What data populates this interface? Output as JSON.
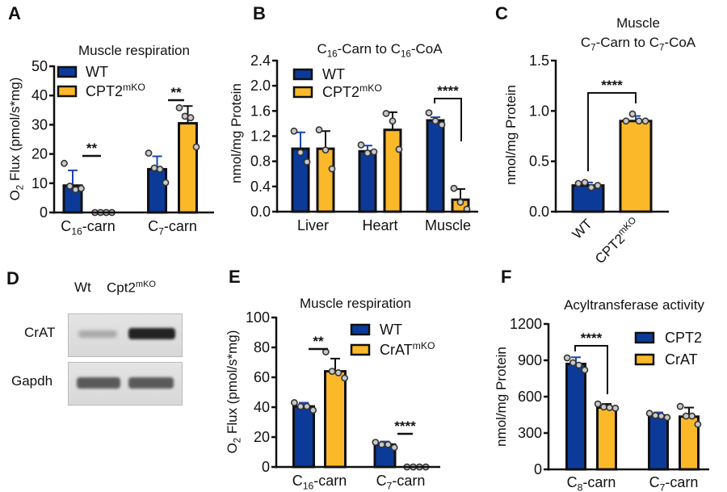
{
  "colors": {
    "wt_blue": "#0b3a99",
    "ko_yellow": "#fbb829",
    "point": "#c9c9c9",
    "outline": "#111111"
  },
  "panels": {
    "letters": [
      "A",
      "B",
      "C",
      "D",
      "E",
      "F"
    ]
  },
  "western_blot": {
    "lanes": [
      "Wt",
      "Cpt2"
    ],
    "lane2_sup": "mKO",
    "rows": [
      "CrAT",
      "Gapdh"
    ]
  },
  "chart_data": [
    {
      "id": "A",
      "type": "bar",
      "title": [
        [
          "Muscle respiration"
        ]
      ],
      "ylabel": [
        [
          "O"
        ],
        [
          "2",
          "sub"
        ],
        [
          " Flux (pmol/s*mg)"
        ]
      ],
      "ylim": [
        0,
        50
      ],
      "yticks": [
        0,
        10,
        20,
        30,
        40,
        50
      ],
      "ytick_labels": [
        "0",
        "10",
        "20",
        "30",
        "40",
        "50"
      ],
      "categories": [
        [
          [
            "C"
          ],
          [
            "16",
            "sub"
          ],
          [
            "-carn"
          ]
        ],
        [
          [
            "C"
          ],
          [
            "7",
            "sub"
          ],
          [
            "-carn"
          ]
        ]
      ],
      "legend": "top-left",
      "series": [
        {
          "name": [
            [
              "WT"
            ]
          ],
          "color": "#0b3a99",
          "values": [
            9.2,
            14.8
          ],
          "error_upper": [
            14.4,
            19.2
          ],
          "points": [
            [
              16.8,
              9,
              7.8,
              8.2
            ],
            [
              20.3,
              15.2,
              14.8,
              10.2
            ]
          ]
        },
        {
          "name": [
            [
              "CPT2"
            ],
            [
              "mKO",
              "sup"
            ]
          ],
          "color": "#fbb829",
          "values": [
            0.1,
            30.5
          ],
          "error_upper": [
            0.2,
            36.4
          ],
          "points": [
            [
              0,
              0,
              0,
              0
            ],
            [
              35.8,
              32.9,
              32.4,
              22.4
            ]
          ]
        }
      ],
      "significance": [
        {
          "label": "**",
          "category": 0,
          "style": "line"
        },
        {
          "label": "**",
          "category": 1,
          "style": "line"
        }
      ]
    },
    {
      "id": "B",
      "type": "bar",
      "title": [
        [
          "C"
        ],
        [
          "16",
          "sub"
        ],
        [
          "-Carn to C"
        ],
        [
          "16",
          "sub"
        ],
        [
          "-CoA"
        ]
      ],
      "ylabel": [
        [
          "nmol/mg Protein"
        ]
      ],
      "ylim": [
        0,
        2.4
      ],
      "yticks": [
        0,
        0.4,
        0.8,
        1.2,
        1.6,
        2.0,
        2.4
      ],
      "ytick_labels": [
        "0.0",
        "0.4",
        "0.8",
        "1.2",
        "1.6",
        "2.0",
        "2.4"
      ],
      "categories": [
        [
          [
            "Liver"
          ]
        ],
        [
          [
            "Heart"
          ]
        ],
        [
          [
            "Muscle"
          ]
        ]
      ],
      "legend": "top-left",
      "series": [
        {
          "name": [
            [
              "WT"
            ]
          ],
          "color": "#0b3a99",
          "values": [
            1.0,
            0.96,
            1.45
          ],
          "error_upper": [
            1.26,
            1.05,
            1.5
          ],
          "points": [
            [
              1.28,
              0.94,
              0.79
            ],
            [
              1.06,
              0.93,
              0.95
            ],
            [
              1.57,
              1.44,
              1.38
            ]
          ]
        },
        {
          "name": [
            [
              "CPT2"
            ],
            [
              "mKO",
              "sup"
            ]
          ],
          "color": "#fbb829",
          "values": [
            1.0,
            1.3,
            0.19
          ],
          "error_upper": [
            1.28,
            1.58,
            0.36
          ],
          "points": [
            [
              1.3,
              0.98,
              0.68
            ],
            [
              1.56,
              1.44,
              0.99
            ],
            [
              0.37,
              0.15,
              0.04
            ]
          ]
        }
      ],
      "significance": [
        {
          "label": "****",
          "category": 2,
          "style": "bracket"
        }
      ]
    },
    {
      "id": "C",
      "type": "bar",
      "title": [
        [
          "Muscle"
        ]
      ],
      "subtitle": [
        [
          "C"
        ],
        [
          "7",
          "sub"
        ],
        [
          "-Carn to C"
        ],
        [
          "7",
          "sub"
        ],
        [
          "-CoA"
        ]
      ],
      "ylabel": [
        [
          "nmol/mg Protein"
        ]
      ],
      "ylim": [
        0,
        1.5
      ],
      "yticks": [
        0,
        0.5,
        1.0,
        1.5
      ],
      "ytick_labels": [
        "0.0",
        "0.5",
        "1.0",
        "1.5"
      ],
      "categories": [
        [
          [
            "WT"
          ]
        ],
        [
          [
            "CPT2"
          ],
          [
            "mKO",
            "sup"
          ]
        ]
      ],
      "series": [
        {
          "color": [
            "#0b3a99",
            "#fbb829"
          ],
          "values": [
            0.26,
            0.9
          ],
          "error_upper": [
            0.29,
            0.95
          ],
          "points": [
            [
              0.28,
              0.29,
              0.24,
              0.26
            ],
            [
              0.9,
              0.97,
              0.9,
              0.9
            ]
          ]
        }
      ],
      "significance": [
        {
          "label": "****",
          "style": "bracket"
        }
      ]
    },
    {
      "id": "E",
      "type": "bar",
      "title": [
        [
          "Muscle respiration"
        ]
      ],
      "ylabel": [
        [
          "O"
        ],
        [
          "2",
          "sub"
        ],
        [
          " Flux (pmol/s*mg)"
        ]
      ],
      "ylim": [
        0,
        100
      ],
      "yticks": [
        0,
        20,
        40,
        60,
        80,
        100
      ],
      "ytick_labels": [
        "0",
        "20",
        "40",
        "60",
        "80",
        "100"
      ],
      "categories": [
        [
          [
            "C"
          ],
          [
            "16",
            "sub"
          ],
          [
            "-carn"
          ]
        ],
        [
          [
            "C"
          ],
          [
            "7",
            "sub"
          ],
          [
            "-carn"
          ]
        ]
      ],
      "legend": "top-right",
      "series": [
        {
          "name": [
            [
              "WT"
            ]
          ],
          "color": "#0b3a99",
          "values": [
            40.5,
            15
          ],
          "error_upper": [
            43,
            17
          ],
          "points": [
            [
              43,
              40.5,
              40.5,
              38
            ],
            [
              16.5,
              15,
              15,
              13
            ]
          ]
        },
        {
          "name": [
            [
              "CrAT"
            ],
            [
              "mKO",
              "sup"
            ]
          ],
          "color": "#fbb829",
          "values": [
            64,
            0.1
          ],
          "error_upper": [
            72.5,
            0.2
          ],
          "points": [
            [
              77,
              64,
              63,
              59.5
            ],
            [
              0,
              0,
              0,
              0
            ]
          ]
        }
      ],
      "significance": [
        {
          "label": "**",
          "category": 0,
          "style": "line"
        },
        {
          "label": "****",
          "category": 1,
          "style": "line"
        }
      ]
    },
    {
      "id": "F",
      "type": "bar",
      "title": [
        [
          "Acyltransferase activity"
        ]
      ],
      "ylabel": [
        [
          "nmol/mg Protein"
        ]
      ],
      "ylim": [
        0,
        1200
      ],
      "yticks": [
        0,
        300,
        600,
        900,
        1200
      ],
      "ytick_labels": [
        "0",
        "300",
        "600",
        "900",
        "1200"
      ],
      "categories": [
        [
          [
            "C"
          ],
          [
            "8",
            "sub"
          ],
          [
            "-carn"
          ]
        ],
        [
          [
            "C"
          ],
          [
            "7",
            "sub"
          ],
          [
            "-carn"
          ]
        ]
      ],
      "legend": "top-right",
      "series": [
        {
          "name": [
            [
              "CPT2"
            ]
          ],
          "color": "#0b3a99",
          "values": [
            870,
            445
          ],
          "error_upper": [
            925,
            470
          ],
          "points": [
            [
              920,
              880,
              860,
              820
            ],
            [
              462,
              445,
              440,
              428
            ]
          ]
        },
        {
          "name": [
            [
              "CrAT"
            ]
          ],
          "color": "#fbb829",
          "values": [
            510,
            435
          ],
          "error_upper": [
            540,
            510
          ],
          "points": [
            [
              540,
              515,
              510,
              505
            ],
            [
              520,
              440,
              440,
              372
            ]
          ]
        }
      ],
      "significance": [
        {
          "label": "****",
          "category": 0,
          "style": "bracket"
        }
      ]
    }
  ]
}
